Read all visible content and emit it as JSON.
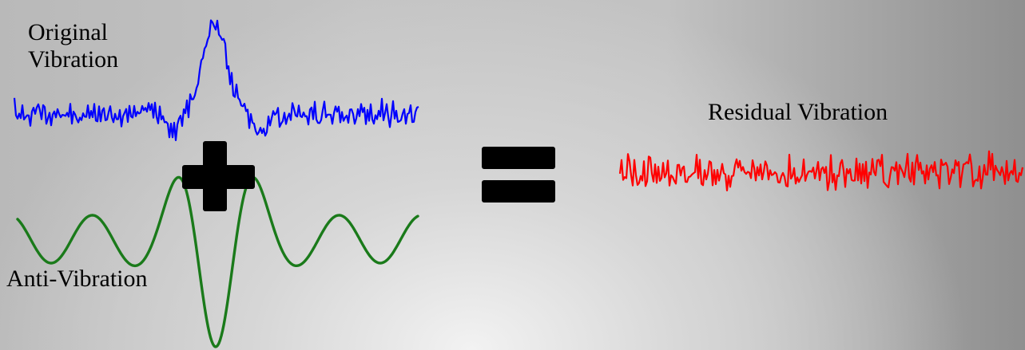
{
  "labels": {
    "original_line1": "Original",
    "original_line2": "Vibration",
    "anti": "Anti-Vibration",
    "residual": "Residual Vibration"
  },
  "colors": {
    "original": "#0000ff",
    "anti": "#1a7a1a",
    "residual": "#ff0000",
    "operators": "#000000"
  },
  "operators": [
    "plus",
    "equals"
  ]
}
